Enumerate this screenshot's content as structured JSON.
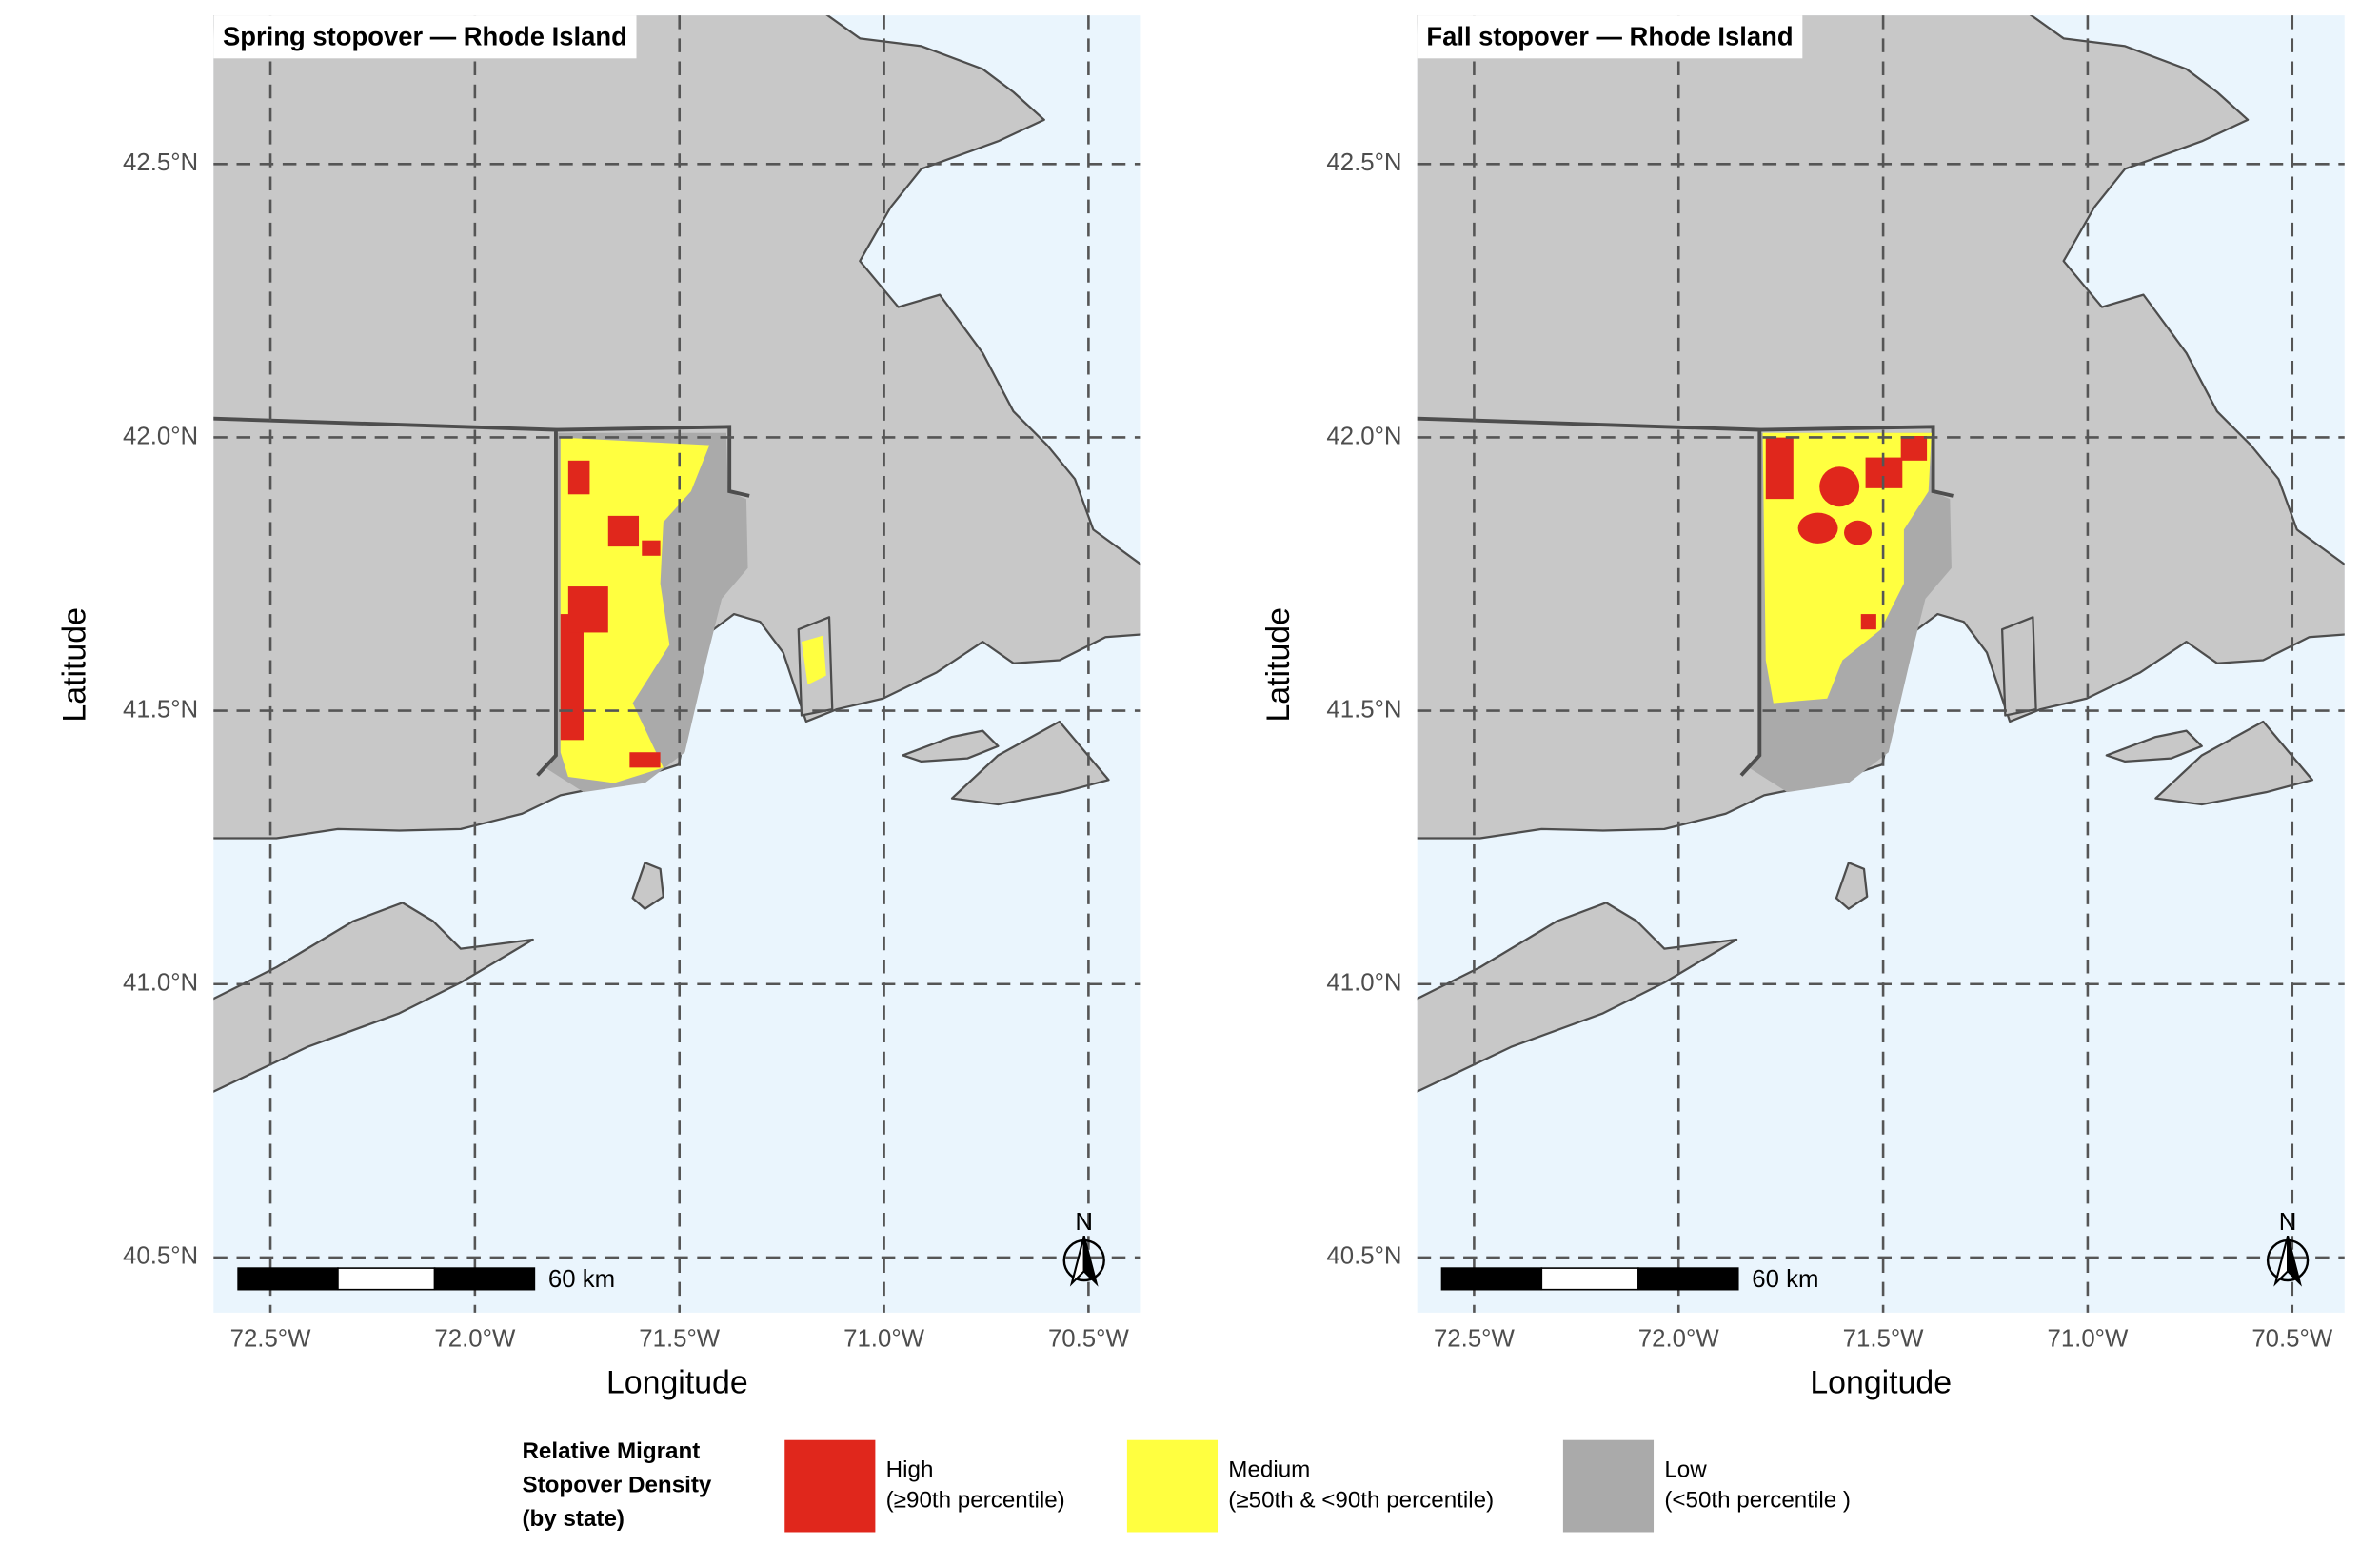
{
  "panels": [
    {
      "title": "Spring stopover — Rhode Island",
      "xlim": [
        -72.639,
        -70.372
      ],
      "ylim": [
        40.399,
        42.772
      ],
      "xticks": [
        {
          "value": -72.5,
          "label": "72.5°W"
        },
        {
          "value": -72.0,
          "label": "72.0°W"
        },
        {
          "value": -71.5,
          "label": "71.5°W"
        },
        {
          "value": -71.0,
          "label": "71.0°W"
        },
        {
          "value": -70.5,
          "label": "70.5°W"
        }
      ],
      "yticks": [
        {
          "value": 40.5,
          "label": "40.5°N"
        },
        {
          "value": 41.0,
          "label": "41.0°N"
        },
        {
          "value": 41.5,
          "label": "41.5°N"
        },
        {
          "value": 42.0,
          "label": "42.0°N"
        },
        {
          "value": 42.5,
          "label": "42.5°N"
        }
      ],
      "x_label": "Longitude",
      "y_label": "Latitude",
      "scale_bar_label": "60 km",
      "north_label": "N"
    },
    {
      "title": "Fall stopover — Rhode Island",
      "xlim": [
        -72.639,
        -70.372
      ],
      "ylim": [
        40.399,
        42.772
      ],
      "xticks": [
        {
          "value": -72.5,
          "label": "72.5°W"
        },
        {
          "value": -72.0,
          "label": "72.0°W"
        },
        {
          "value": -71.5,
          "label": "71.5°W"
        },
        {
          "value": -71.0,
          "label": "71.0°W"
        },
        {
          "value": -70.5,
          "label": "70.5°W"
        }
      ],
      "yticks": [
        {
          "value": 40.5,
          "label": "40.5°N"
        },
        {
          "value": 41.0,
          "label": "41.0°N"
        },
        {
          "value": 41.5,
          "label": "41.5°N"
        },
        {
          "value": 42.0,
          "label": "42.0°N"
        },
        {
          "value": 42.5,
          "label": "42.5°N"
        }
      ],
      "x_label": "Longitude",
      "y_label": "Latitude",
      "scale_bar_label": "60 km",
      "north_label": "N"
    }
  ],
  "legend": {
    "title_lines": [
      "Relative Migrant",
      "Stopover Density",
      "(by state)"
    ],
    "items": [
      {
        "name": "High",
        "detail": "(≥90th percentile)",
        "color": "#e0271c"
      },
      {
        "name": "Medium",
        "detail": "(≥50th & <90th percentile)",
        "color": "#ffff40"
      },
      {
        "name": "Low",
        "detail": "(<50th percentile )",
        "color": "#aaaaaa"
      }
    ]
  }
}
